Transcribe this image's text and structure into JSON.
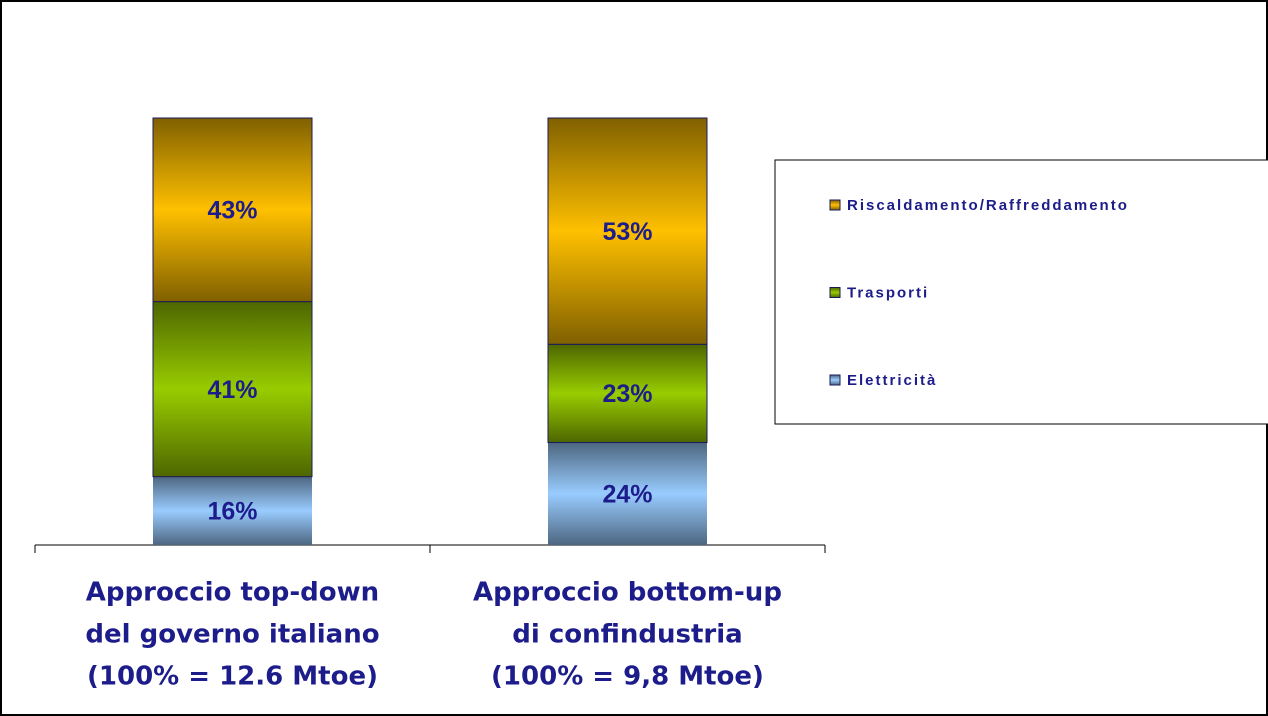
{
  "chart_data": {
    "type": "stacked_bar",
    "categories": [
      [
        "Approccio top-down",
        "del governo italiano",
        "(100% = 12.6 Mtoe)"
      ],
      [
        "Approccio bottom-up",
        "di confindustria",
        "(100% = 9,8 Mtoe)"
      ]
    ],
    "series": [
      {
        "name": "Elettricità",
        "color": "#99ccff",
        "values": [
          16,
          24
        ],
        "value_labels": [
          "16%",
          "24%"
        ]
      },
      {
        "name": "Trasporti",
        "color": "#99cc00",
        "values": [
          41,
          23
        ],
        "value_labels": [
          "41%",
          "23%"
        ]
      },
      {
        "name": "Riscaldamento/Raffreddamento",
        "color": "#ffc000",
        "values": [
          43,
          53
        ],
        "value_labels": [
          "43%",
          "53%"
        ]
      }
    ],
    "ylim": [
      0,
      100
    ],
    "legend": "right"
  }
}
